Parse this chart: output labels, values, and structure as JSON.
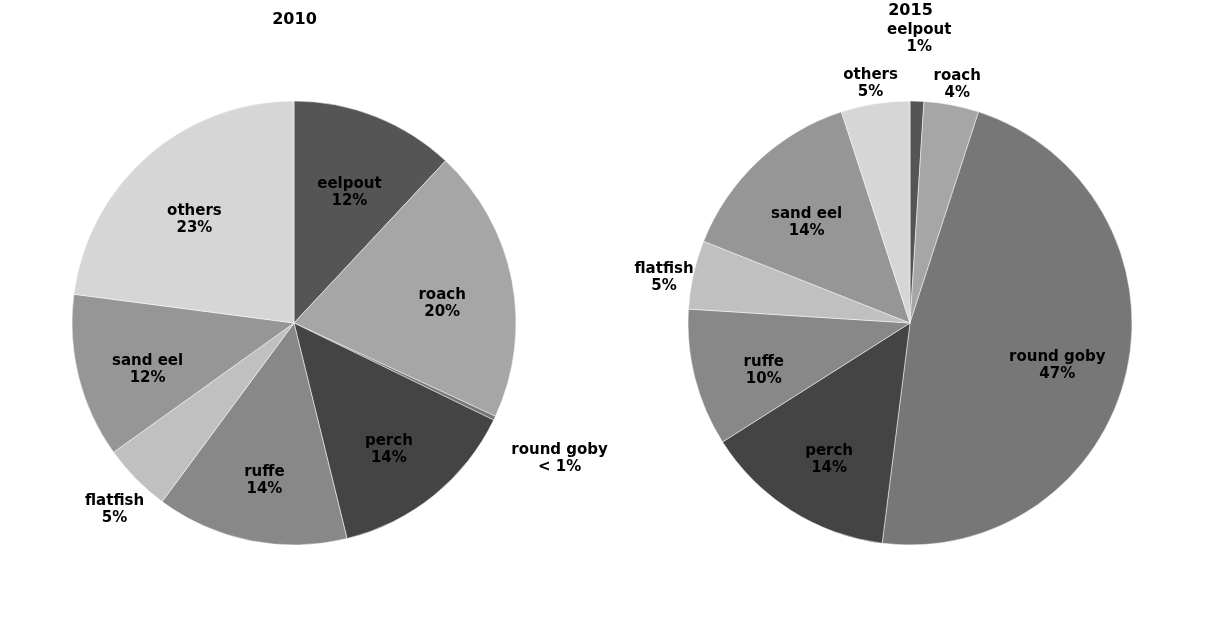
{
  "chart_data": [
    {
      "type": "pie",
      "title": "2010",
      "categories": [
        "eelpout",
        "roach",
        "round goby",
        "perch",
        "ruffe",
        "flatfish",
        "sand eel",
        "others"
      ],
      "values": [
        12,
        20,
        0.3,
        14,
        14,
        5,
        12,
        23
      ],
      "value_labels": [
        "12%",
        "20%",
        "< 1%",
        "14%",
        "14%",
        "5%",
        "12%",
        "23%"
      ],
      "colors": [
        "#555555",
        "#a6a6a6",
        "#777777",
        "#444444",
        "#888888",
        "#c0c0c0",
        "#969696",
        "#d6d6d6"
      ]
    },
    {
      "type": "pie",
      "title": "2015",
      "categories": [
        "eelpout",
        "roach",
        "round goby",
        "perch",
        "ruffe",
        "flatfish",
        "sand eel",
        "others"
      ],
      "values": [
        1,
        4,
        47,
        14,
        10,
        5,
        14,
        5
      ],
      "value_labels": [
        "1%",
        "4%",
        "47%",
        "14%",
        "10%",
        "5%",
        "14%",
        "5%"
      ],
      "colors": [
        "#555555",
        "#a6a6a6",
        "#777777",
        "#444444",
        "#888888",
        "#c0c0c0",
        "#969696",
        "#d6d6d6"
      ]
    }
  ]
}
